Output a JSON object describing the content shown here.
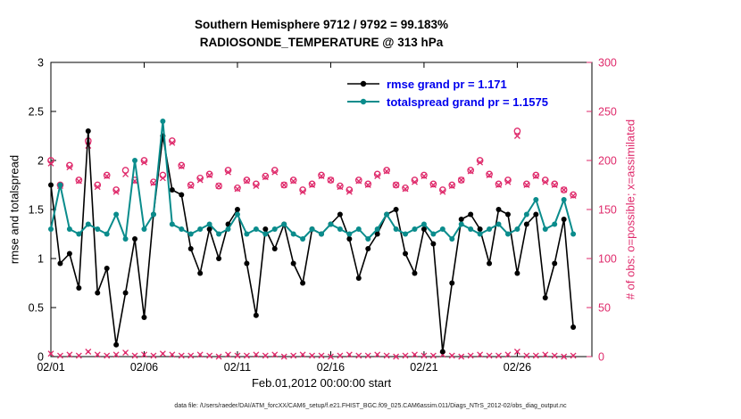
{
  "title": {
    "line1": "Southern Hemisphere 9712 / 9792 = 99.183%",
    "line2": "RADIOSONDE_TEMPERATURE @ 313 hPa"
  },
  "legend": {
    "text_color": "#0000ee",
    "items": [
      {
        "label": "rmse grand pr = 1.171",
        "color": "#000000"
      },
      {
        "label": "totalspread grand pr = 1.1575",
        "color": "#0a8c8c"
      }
    ]
  },
  "caption": "data file: /Users/raeder/DAI/ATM_forcXX/CAM6_setup/f.e21.FHIST_BGC.f09_025.CAM6assim.011/Diags_NTrS_2012-02/obs_diag_output.nc",
  "chart_data": {
    "type": "line",
    "title": "Southern Hemisphere 9712 / 9792 = 99.183%",
    "subtitle": "RADIOSONDE_TEMPERATURE @ 313 hPa",
    "xlabel": "Feb.01,2012 00:00:00 start",
    "x_range_days": [
      0,
      29
    ],
    "x_step_days": 0.5,
    "x_tick_days": [
      0,
      5,
      10,
      15,
      20,
      25
    ],
    "x_ticklabels": [
      "02/01",
      "02/06",
      "02/11",
      "02/16",
      "02/21",
      "02/26"
    ],
    "left_axis": {
      "label": "rmse and totalspread",
      "range": [
        0,
        3
      ],
      "ticks": [
        0,
        0.5,
        1,
        1.5,
        2,
        2.5,
        3
      ],
      "color": "#000000"
    },
    "right_axis": {
      "label": "# of obs: o=possible; x=assimilated",
      "range": [
        0,
        300
      ],
      "ticks": [
        0,
        50,
        100,
        150,
        200,
        250,
        300
      ],
      "color": "#df2a6b"
    },
    "grid": false,
    "legend_position": "top-center-inside",
    "series": [
      {
        "name": "rmse",
        "axis": "left",
        "color": "#000000",
        "marker": "dot",
        "grand_pr": 1.171,
        "values": [
          1.75,
          0.95,
          1.05,
          0.7,
          2.3,
          0.65,
          0.9,
          0.12,
          0.65,
          1.2,
          0.4,
          1.45,
          2.25,
          1.7,
          1.65,
          1.1,
          0.85,
          1.3,
          1.0,
          1.35,
          1.5,
          0.95,
          0.42,
          1.3,
          1.1,
          1.35,
          0.95,
          0.75,
          1.3,
          1.25,
          1.35,
          1.45,
          1.2,
          0.8,
          1.1,
          1.25,
          1.45,
          1.5,
          1.05,
          0.85,
          1.3,
          1.15,
          0.05,
          0.75,
          1.4,
          1.45,
          1.3,
          0.95,
          1.5,
          1.45,
          0.85,
          1.35,
          1.45,
          0.6,
          0.95,
          1.4,
          0.3
        ]
      },
      {
        "name": "totalspread",
        "axis": "left",
        "color": "#0a8c8c",
        "marker": "dot",
        "grand_pr": 1.1575,
        "values": [
          1.3,
          1.75,
          1.3,
          1.25,
          1.35,
          1.3,
          1.25,
          1.45,
          1.2,
          2.0,
          1.3,
          1.45,
          2.4,
          1.35,
          1.3,
          1.25,
          1.3,
          1.35,
          1.25,
          1.3,
          1.45,
          1.25,
          1.3,
          1.25,
          1.3,
          1.35,
          1.25,
          1.2,
          1.3,
          1.25,
          1.35,
          1.3,
          1.25,
          1.3,
          1.2,
          1.3,
          1.45,
          1.3,
          1.25,
          1.3,
          1.35,
          1.25,
          1.3,
          1.2,
          1.35,
          1.3,
          1.25,
          1.3,
          1.35,
          1.25,
          1.3,
          1.45,
          1.6,
          1.3,
          1.35,
          1.6,
          1.25
        ]
      },
      {
        "name": "obs_possible",
        "axis": "right",
        "color": "#df2a6b",
        "marker": "circle-open",
        "values": [
          200,
          175,
          195,
          180,
          220,
          175,
          185,
          170,
          190,
          180,
          200,
          178,
          185,
          220,
          195,
          175,
          182,
          186,
          174,
          190,
          172,
          180,
          176,
          184,
          190,
          175,
          180,
          170,
          176,
          185,
          180,
          174,
          170,
          180,
          176,
          186,
          190,
          175,
          172,
          180,
          185,
          176,
          170,
          175,
          180,
          190,
          200,
          186,
          176,
          180,
          230,
          176,
          185,
          180,
          176,
          170,
          165
        ]
      },
      {
        "name": "obs_assimilated",
        "axis": "right",
        "color": "#df2a6b",
        "marker": "x",
        "values": [
          197,
          174,
          193,
          179,
          215,
          173,
          184,
          168,
          186,
          179,
          198,
          177,
          182,
          218,
          194,
          174,
          180,
          185,
          174,
          188,
          171,
          179,
          174,
          183,
          188,
          175,
          179,
          168,
          175,
          184,
          180,
          173,
          168,
          179,
          175,
          184,
          189,
          175,
          171,
          178,
          184,
          175,
          168,
          174,
          180,
          189,
          198,
          185,
          175,
          178,
          225,
          175,
          184,
          178,
          175,
          170,
          164
        ]
      },
      {
        "name": "obs_near_zero_row",
        "axis": "right",
        "color": "#df2a6b",
        "marker": "asterisk",
        "values": [
          3,
          1,
          2,
          1,
          5,
          2,
          1,
          2,
          4,
          1,
          2,
          1,
          3,
          2,
          1,
          1,
          2,
          1,
          0,
          2,
          1,
          1,
          2,
          1,
          2,
          0,
          1,
          2,
          1,
          1,
          0,
          1,
          2,
          1,
          1,
          2,
          1,
          0,
          1,
          2,
          1,
          1,
          2,
          1,
          0,
          1,
          2,
          1,
          1,
          2,
          5,
          1,
          1,
          2,
          1,
          0,
          1
        ]
      }
    ]
  }
}
